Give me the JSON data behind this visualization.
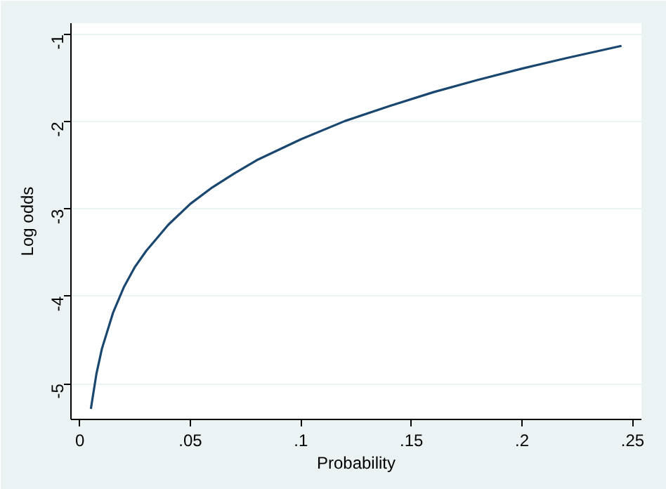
{
  "chart_data": {
    "type": "line",
    "xlabel": "Probability",
    "ylabel": "Log odds",
    "x": [
      0.005,
      0.0075,
      0.01,
      0.015,
      0.02,
      0.025,
      0.03,
      0.04,
      0.05,
      0.06,
      0.07,
      0.08,
      0.1,
      0.12,
      0.14,
      0.16,
      0.18,
      0.2,
      0.22,
      0.245
    ],
    "series": [
      {
        "color": "#1a476f",
        "values": [
          -5.29,
          -4.89,
          -4.6,
          -4.19,
          -3.89,
          -3.66,
          -3.48,
          -3.18,
          -2.94,
          -2.75,
          -2.59,
          -2.44,
          -2.2,
          -1.99,
          -1.82,
          -1.66,
          -1.52,
          -1.39,
          -1.27,
          -1.13
        ]
      }
    ],
    "xlim": [
      -0.004,
      0.254
    ],
    "ylim": [
      -5.41,
      -0.87
    ],
    "xticks": [
      0,
      {
        "value": 0.05,
        "label": ".05"
      },
      {
        "value": 0.1,
        "label": ".1"
      },
      {
        "value": 0.15,
        "label": ".15"
      },
      {
        "value": 0.2,
        "label": ".2"
      },
      {
        "value": 0.25,
        "label": ".25"
      }
    ],
    "yticks": [
      -5,
      -4,
      -3,
      -2,
      -1
    ],
    "grid": "y",
    "marker": "none",
    "line_style": "solid"
  }
}
